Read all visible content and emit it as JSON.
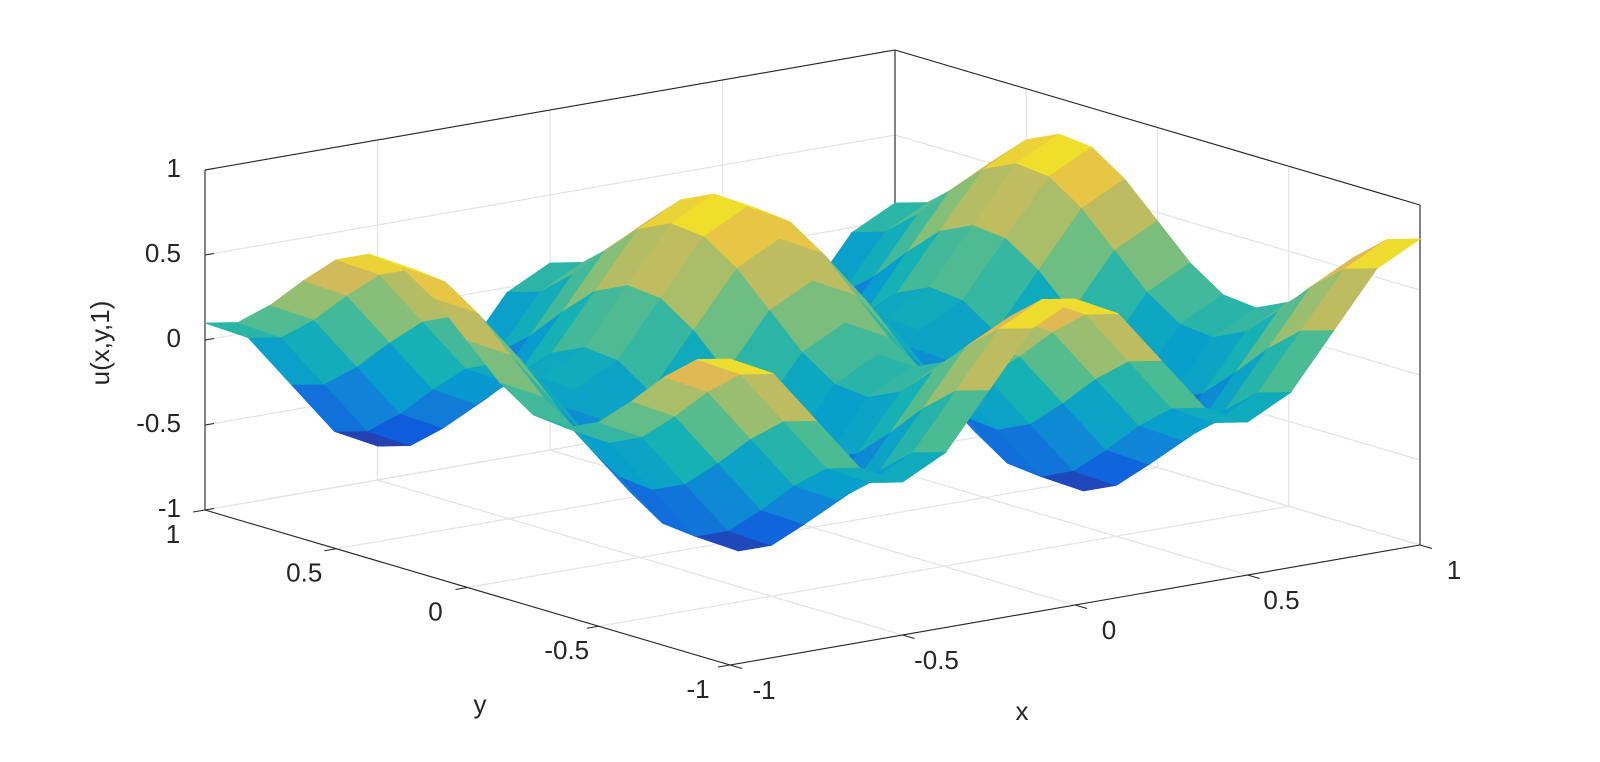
{
  "chart_data": {
    "type": "surface",
    "x": [
      -1,
      -0.875,
      -0.75,
      -0.625,
      -0.5,
      -0.375,
      -0.25,
      -0.125,
      0,
      0.125,
      0.25,
      0.375,
      0.5,
      0.625,
      0.75,
      0.875,
      1
    ],
    "y": [
      -1,
      -0.875,
      -0.75,
      -0.625,
      -0.5,
      -0.375,
      -0.25,
      -0.125,
      0,
      0.125,
      0.25,
      0.375,
      0.5,
      0.625,
      0.75,
      0.875,
      1
    ],
    "z": [
      [
        0.8,
        0.67,
        0.35,
        0.03,
        -0.1,
        0.03,
        0.35,
        0.67,
        0.8,
        0.67,
        0.35,
        0.03,
        -0.1,
        0.03,
        0.35,
        0.67,
        0.8
      ],
      [
        0.74,
        0.61,
        0.29,
        -0.03,
        -0.16,
        -0.03,
        0.29,
        0.61,
        0.74,
        0.61,
        0.29,
        -0.03,
        -0.16,
        -0.03,
        0.29,
        0.61,
        0.74
      ],
      [
        0.58,
        0.45,
        0.13,
        -0.19,
        -0.32,
        -0.19,
        0.13,
        0.45,
        0.58,
        0.45,
        0.13,
        -0.19,
        -0.32,
        -0.19,
        0.13,
        0.45,
        0.58
      ],
      [
        0.38,
        0.25,
        -0.07,
        -0.39,
        -0.52,
        -0.39,
        -0.07,
        0.25,
        0.38,
        0.25,
        -0.07,
        -0.39,
        -0.52,
        -0.39,
        -0.07,
        0.25,
        0.38
      ],
      [
        0.2,
        0.07,
        -0.25,
        -0.57,
        -0.7,
        -0.57,
        -0.25,
        0.07,
        0.2,
        0.07,
        -0.25,
        -0.57,
        -0.7,
        -0.57,
        -0.25,
        0.07,
        0.2
      ],
      [
        0.11,
        -0.02,
        -0.34,
        -0.66,
        -0.79,
        -0.66,
        -0.34,
        -0.02,
        0.11,
        -0.02,
        -0.34,
        -0.66,
        -0.79,
        -0.66,
        -0.34,
        -0.02,
        0.11
      ],
      [
        0.13,
        0,
        -0.32,
        -0.64,
        -0.77,
        -0.64,
        -0.32,
        0,
        0.13,
        0,
        -0.32,
        -0.64,
        -0.77,
        -0.64,
        -0.32,
        0,
        0.13
      ],
      [
        0.26,
        0.13,
        -0.19,
        -0.51,
        -0.64,
        -0.51,
        -0.19,
        0.13,
        0.26,
        0.13,
        -0.19,
        -0.51,
        -0.64,
        -0.51,
        -0.19,
        0.13,
        0.26
      ],
      [
        0.45,
        0.32,
        0,
        -0.32,
        -0.45,
        -0.32,
        0,
        0.32,
        0.45,
        0.32,
        0,
        -0.32,
        -0.45,
        -0.32,
        0,
        0.32,
        0.45
      ],
      [
        0.64,
        0.51,
        0.19,
        -0.13,
        -0.26,
        -0.13,
        0.19,
        0.51,
        0.64,
        0.51,
        0.19,
        -0.13,
        -0.26,
        -0.13,
        0.19,
        0.51,
        0.64
      ],
      [
        0.77,
        0.64,
        0.32,
        0,
        -0.13,
        0,
        0.32,
        0.64,
        0.77,
        0.64,
        0.32,
        0,
        -0.13,
        0,
        0.32,
        0.64,
        0.77
      ],
      [
        0.79,
        0.66,
        0.34,
        0.02,
        -0.11,
        0.02,
        0.34,
        0.66,
        0.79,
        0.66,
        0.34,
        0.02,
        -0.11,
        0.02,
        0.34,
        0.66,
        0.79
      ],
      [
        0.7,
        0.57,
        0.25,
        -0.07,
        -0.2,
        -0.07,
        0.25,
        0.57,
        0.7,
        0.57,
        0.25,
        -0.07,
        -0.2,
        -0.07,
        0.25,
        0.57,
        0.7
      ],
      [
        0.52,
        0.39,
        0.07,
        -0.25,
        -0.38,
        -0.25,
        0.07,
        0.39,
        0.52,
        0.39,
        0.07,
        -0.25,
        -0.38,
        -0.25,
        0.07,
        0.39,
        0.52
      ],
      [
        0.32,
        0.19,
        -0.13,
        -0.45,
        -0.58,
        -0.45,
        -0.13,
        0.19,
        0.32,
        0.19,
        -0.13,
        -0.45,
        -0.58,
        -0.45,
        -0.13,
        0.19,
        0.32
      ],
      [
        0.16,
        0.03,
        -0.29,
        -0.61,
        -0.74,
        -0.61,
        -0.29,
        0.03,
        0.16,
        0.03,
        -0.29,
        -0.61,
        -0.74,
        -0.61,
        -0.29,
        0.03,
        0.16
      ],
      [
        0.1,
        -0.03,
        -0.35,
        -0.67,
        -0.8,
        -0.67,
        -0.35,
        -0.03,
        0.1,
        -0.03,
        -0.35,
        -0.67,
        -0.8,
        -0.67,
        -0.35,
        -0.03,
        0.1
      ]
    ],
    "xlim": [
      -1,
      1
    ],
    "ylim": [
      -1,
      1
    ],
    "zlim": [
      -1,
      1
    ],
    "xticks": [
      -1,
      -0.5,
      0,
      0.5,
      1
    ],
    "yticks": [
      -1,
      -0.5,
      0,
      0.5,
      1
    ],
    "zticks": [
      -1,
      -0.5,
      0,
      0.5,
      1
    ],
    "xlabel": "x",
    "ylabel": "y",
    "zlabel": "u(x,y,1)",
    "grid": true,
    "colormap": "parula"
  }
}
